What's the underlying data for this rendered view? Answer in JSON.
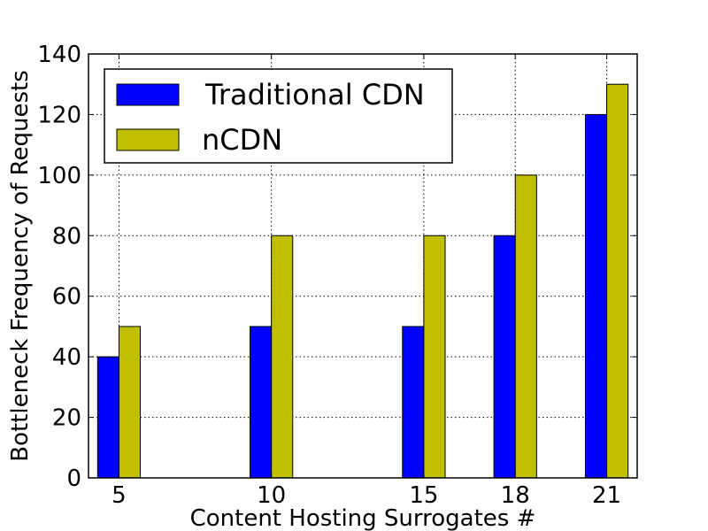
{
  "chart_data": {
    "type": "bar",
    "xlabel": "Content Hosting Surrogates #",
    "ylabel": "Bottleneck Frequency of Requests",
    "x": [
      5,
      10,
      15,
      18,
      21
    ],
    "categories": [
      "5",
      "10",
      "15",
      "18",
      "21"
    ],
    "series": [
      {
        "name": "Traditional CDN",
        "color": "#0000ff",
        "values": [
          40,
          50,
          50,
          80,
          120
        ]
      },
      {
        "name": "nCDN",
        "color": "#bfbf00",
        "values": [
          50,
          80,
          80,
          100,
          130
        ]
      }
    ],
    "xlim": [
      4,
      22
    ],
    "ylim": [
      0,
      140
    ],
    "yticks": [
      0,
      20,
      40,
      60,
      80,
      100,
      120,
      140
    ],
    "grid": true,
    "legend_position": "top-left"
  }
}
